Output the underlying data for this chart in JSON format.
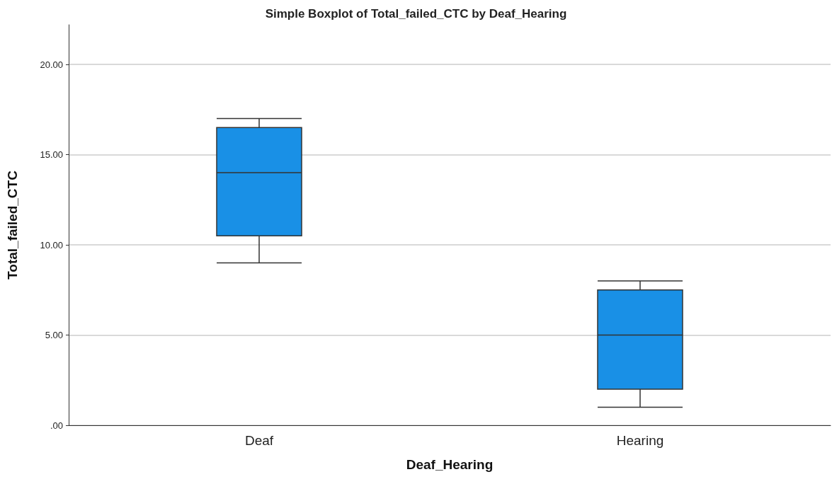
{
  "chart_data": {
    "type": "box",
    "title": "Simple Boxplot of Total_failed_CTC by Deaf_Hearing",
    "xlabel": "Deaf_Hearing",
    "ylabel": "Total_failed_CTC",
    "categories": [
      "Deaf",
      "Hearing"
    ],
    "boxes": [
      {
        "low": 9,
        "q1": 10.5,
        "median": 14,
        "q3": 16.5,
        "high": 17
      },
      {
        "low": 1,
        "q1": 2,
        "median": 5,
        "q3": 7.5,
        "high": 8
      }
    ],
    "color": "#1990e6",
    "ylim": [
      0,
      22.2
    ],
    "yticks": [
      {
        "value": 0,
        "label": ".00"
      },
      {
        "value": 5,
        "label": "5.00"
      },
      {
        "value": 10,
        "label": "10.00"
      },
      {
        "value": 15,
        "label": "15.00"
      },
      {
        "value": 20,
        "label": "20.00"
      }
    ],
    "grid": "y"
  }
}
